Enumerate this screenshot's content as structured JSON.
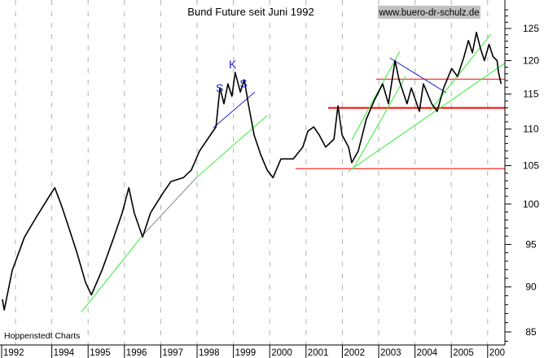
{
  "chart_data": {
    "type": "line",
    "title": "Bund Future seit Juni 1992",
    "watermark": "www.buero-dr-schulz.de",
    "source": "Hoppenstedt Charts",
    "x_tick_labels": [
      "1992",
      "1994",
      "1995",
      "1996",
      "1997",
      "1998",
      "1999",
      "2000",
      "2001",
      "2002",
      "2003",
      "2004",
      "2005",
      "200"
    ],
    "x_gridlines_years": [
      1993,
      1994,
      1995,
      1996,
      1997,
      1998,
      1999,
      2000,
      2001,
      2002,
      2003,
      2004,
      2005,
      2006
    ],
    "y_ticks": [
      85,
      90,
      95,
      100,
      105,
      110,
      115,
      120,
      125
    ],
    "y_tick_labels": [
      "85",
      "90",
      "95",
      "100",
      "105",
      "110",
      "115",
      "120",
      "125"
    ],
    "yscale": "log",
    "ylim": [
      83.7,
      128.8
    ],
    "xlim": [
      1992.6,
      2006.47
    ],
    "grid": "vertical dashed",
    "colors": {
      "price": "#000000",
      "grid": "#b0b0b0",
      "trend_green": "#33ee33",
      "neckline_blue": "#2222cc",
      "support_red": "#ff0000",
      "watermark_bg": "#c0c0c0"
    },
    "series": [
      {
        "x": [
          1992.64,
          1992.69,
          1992.91,
          1993.25,
          1993.58,
          1993.92,
          1994.08,
          1994.26,
          1994.48,
          1994.7,
          1994.93,
          1995.09,
          1995.38,
          1995.71,
          1995.94,
          1996.12,
          1996.27,
          1996.5,
          1996.72,
          1997.06,
          1997.28,
          1997.62,
          1997.84,
          1998.07,
          1998.29,
          1998.52,
          1998.63,
          1998.74,
          1998.85,
          1998.96,
          1999.05,
          1999.19,
          1999.3,
          1999.41,
          1999.57,
          1999.75,
          1999.93,
          2000.09,
          2000.31,
          2000.65,
          2000.91,
          2001.05,
          2001.21,
          2001.36,
          2001.54,
          2001.77,
          2001.88,
          2001.99,
          2002.17,
          2002.26,
          2002.44,
          2002.66,
          2002.89,
          2003.11,
          2003.27,
          2003.45,
          2003.56,
          2003.78,
          2003.9,
          2004.12,
          2004.23,
          2004.46,
          2004.61,
          2004.79,
          2005.01,
          2005.17,
          2005.35,
          2005.47,
          2005.58,
          2005.69,
          2005.8,
          2005.91,
          2006.04,
          2006.15,
          2006.26,
          2006.3,
          2006.37
        ],
        "y": [
          88.6,
          87.4,
          91.9,
          95.9,
          98.4,
          100.9,
          102.1,
          99.9,
          96.9,
          93.9,
          90.5,
          89.1,
          91.9,
          95.9,
          98.9,
          102.1,
          98.9,
          95.9,
          98.9,
          101.4,
          102.9,
          103.4,
          104.4,
          107.0,
          108.6,
          110.3,
          115.9,
          113.6,
          116.5,
          114.7,
          118.2,
          115.3,
          117.1,
          113.6,
          109.2,
          106.5,
          104.4,
          103.4,
          105.9,
          105.9,
          107.5,
          109.7,
          110.3,
          109.2,
          107.5,
          108.6,
          113.3,
          109.2,
          107.5,
          105.4,
          107.0,
          111.4,
          114.2,
          116.5,
          113.6,
          120.0,
          117.1,
          113.6,
          115.9,
          112.5,
          116.5,
          113.6,
          112.5,
          115.9,
          118.8,
          117.6,
          120.6,
          123.1,
          121.2,
          124.4,
          121.9,
          120.0,
          122.5,
          120.6,
          120.0,
          118.2,
          116.5
        ]
      }
    ],
    "annotations": {
      "labels": [
        {
          "text": "S",
          "x": 1998.62,
          "y": 115.3
        },
        {
          "text": "K",
          "x": 1998.98,
          "y": 118.8
        },
        {
          "text": "S",
          "x": 1999.28,
          "y": 116.0
        }
      ],
      "lines": [
        {
          "color": "trend_green",
          "from": [
            1994.82,
            87.2
          ],
          "to": [
            1996.5,
            96.1
          ]
        },
        {
          "color": "grey",
          "from": [
            1996.5,
            96.1
          ],
          "to": [
            1998.0,
            103.5
          ]
        },
        {
          "color": "trend_green",
          "from": [
            1998.0,
            103.5
          ],
          "to": [
            1999.93,
            111.9
          ]
        },
        {
          "color": "neckline_blue",
          "from": [
            1998.45,
            110.2
          ],
          "to": [
            1999.59,
            115.3
          ]
        },
        {
          "color": "neckline_blue",
          "from": [
            2003.31,
            120.4
          ],
          "to": [
            2004.86,
            115.2
          ]
        },
        {
          "color": "support_red",
          "from": [
            2002.93,
            117.2
          ],
          "to": [
            2006.47,
            117.2
          ]
        },
        {
          "color": "support_red",
          "from": [
            2001.61,
            113.0
          ],
          "to": [
            2006.47,
            113.0
          ],
          "thick": true
        },
        {
          "color": "support_red",
          "from": [
            2000.71,
            104.6
          ],
          "to": [
            2006.47,
            104.6
          ]
        },
        {
          "color": "trend_green",
          "from": [
            2002.26,
            108.5
          ],
          "to": [
            2003.58,
            121.4
          ]
        },
        {
          "color": "trend_green",
          "from": [
            2002.3,
            104.6
          ],
          "to": [
            2003.74,
            117.6
          ]
        },
        {
          "color": "trend_green",
          "from": [
            2002.15,
            104.2
          ],
          "to": [
            2006.47,
            119.6
          ]
        },
        {
          "color": "trend_green",
          "from": [
            2004.41,
            112.6
          ],
          "to": [
            2006.09,
            124.1
          ]
        }
      ]
    }
  }
}
